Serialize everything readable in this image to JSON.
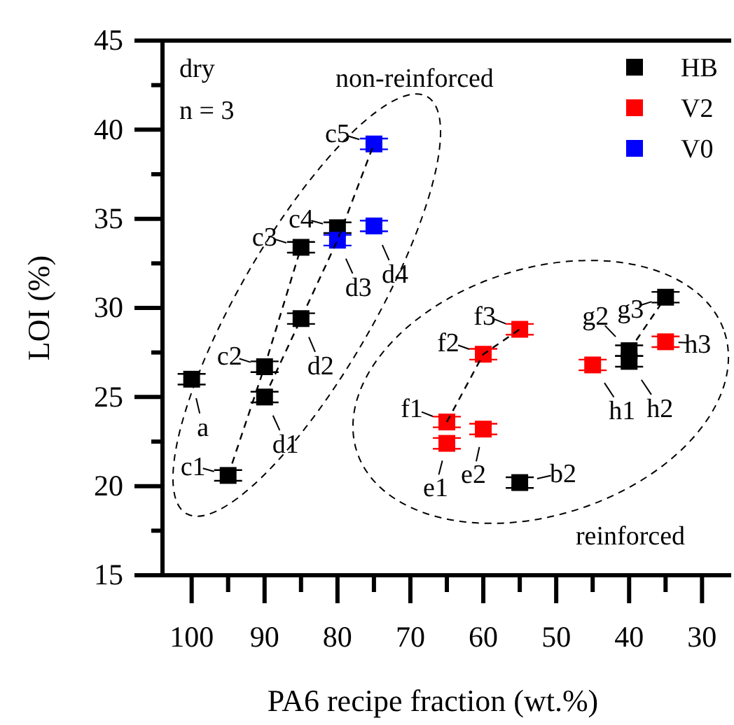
{
  "chart_data": {
    "type": "scatter",
    "xlabel": "PA6 recipe fraction (wt.%)",
    "ylabel": "LOI (%)",
    "xlim": [
      104,
      26
    ],
    "ylim": [
      15,
      45
    ],
    "xticks": [
      100,
      {
        "value": 95,
        "label": null
      },
      90,
      {
        "value": 85,
        "label": null
      },
      80,
      {
        "value": 75,
        "label": null
      },
      70,
      {
        "value": 65,
        "label": null
      },
      60,
      {
        "value": 55,
        "label": null
      },
      50,
      {
        "value": 45,
        "label": null
      },
      40,
      {
        "value": 35,
        "label": null
      },
      30
    ],
    "yticks": [
      15,
      {
        "value": 17.5,
        "label": null
      },
      20,
      {
        "value": 22.5,
        "label": null
      },
      25,
      {
        "value": 27.5,
        "label": null
      },
      30,
      {
        "value": 32.5,
        "label": null
      },
      35,
      {
        "value": 37.5,
        "label": null
      },
      40,
      {
        "value": 42.5,
        "label": null
      },
      45
    ],
    "marker": "square",
    "legend": "top right",
    "grid": false,
    "series": [
      {
        "name": "HB",
        "color": "#000000",
        "x": [
          100,
          95,
          90,
          90,
          85,
          85,
          80,
          55,
          40,
          40,
          35
        ],
        "values": [
          26.0,
          20.6,
          26.7,
          25.0,
          33.4,
          29.4,
          34.5,
          20.2,
          27.6,
          27.0,
          30.6
        ],
        "errors": [
          0.3,
          0.3,
          0.3,
          0.3,
          0.3,
          0.3,
          0.3,
          0.3,
          0.3,
          0.3,
          0.3
        ]
      },
      {
        "name": "V2",
        "color": "#ff0000",
        "x": [
          65,
          65,
          60,
          60,
          55,
          45,
          35
        ],
        "values": [
          22.4,
          23.6,
          23.2,
          27.4,
          28.8,
          26.8,
          28.1
        ],
        "errors": [
          0.3,
          0.3,
          0.3,
          0.3,
          0.3,
          0.3,
          0.3
        ]
      },
      {
        "name": "V0",
        "color": "#0000ff",
        "x": [
          75,
          80,
          75
        ],
        "values": [
          39.2,
          33.8,
          34.6
        ],
        "errors": [
          0.3,
          0.3,
          0.3
        ]
      },
      {
        "type": "line",
        "color": "#000000",
        "line_style": "dashed",
        "marker": "none",
        "x": [
          95,
          90,
          85
        ],
        "values": [
          20.6,
          26.7,
          33.4
        ]
      },
      {
        "type": "line",
        "color": "#000000",
        "line_style": "dashed",
        "marker": "none",
        "x": [
          90,
          85,
          80,
          75
        ],
        "values": [
          25.0,
          29.4,
          33.8,
          39.2
        ]
      },
      {
        "type": "line",
        "color": "#000000",
        "line_style": "dashed",
        "marker": "none",
        "x": [
          65,
          60,
          55
        ],
        "values": [
          23.6,
          27.4,
          28.8
        ]
      },
      {
        "type": "line",
        "color": "#000000",
        "line_style": "dashed",
        "marker": "none",
        "x": [
          40,
          35
        ],
        "values": [
          27.6,
          30.6
        ]
      }
    ],
    "annotations": [
      "dry",
      "n = 3",
      "non-reinforced",
      "reinforced",
      {
        "text": "a",
        "x": 100,
        "y": 26.0
      },
      {
        "text": "c1",
        "x": 95,
        "y": 20.6
      },
      {
        "text": "c2",
        "x": 90,
        "y": 26.7
      },
      {
        "text": "d1",
        "x": 90,
        "y": 25.0
      },
      {
        "text": "c3",
        "x": 85,
        "y": 33.4
      },
      {
        "text": "d2",
        "x": 85,
        "y": 29.4
      },
      {
        "text": "c4",
        "x": 80,
        "y": 34.5
      },
      {
        "text": "d3",
        "x": 80,
        "y": 33.8
      },
      {
        "text": "c5",
        "x": 75,
        "y": 39.2
      },
      {
        "text": "d4",
        "x": 75,
        "y": 34.6
      },
      {
        "text": "f1",
        "x": 65,
        "y": 23.6
      },
      {
        "text": "e1",
        "x": 65,
        "y": 22.4
      },
      {
        "text": "e2",
        "x": 60,
        "y": 23.2
      },
      {
        "text": "f2",
        "x": 60,
        "y": 27.4
      },
      {
        "text": "f3",
        "x": 55,
        "y": 28.8
      },
      {
        "text": "b2",
        "x": 55,
        "y": 20.2
      },
      {
        "text": "h1",
        "x": 45,
        "y": 26.8
      },
      {
        "text": "h2",
        "x": 40,
        "y": 27.0
      },
      {
        "text": "g2",
        "x": 40,
        "y": 27.6
      },
      {
        "text": "g3",
        "x": 35,
        "y": 30.6
      },
      {
        "text": "h3",
        "x": 35,
        "y": 28.1
      }
    ]
  }
}
